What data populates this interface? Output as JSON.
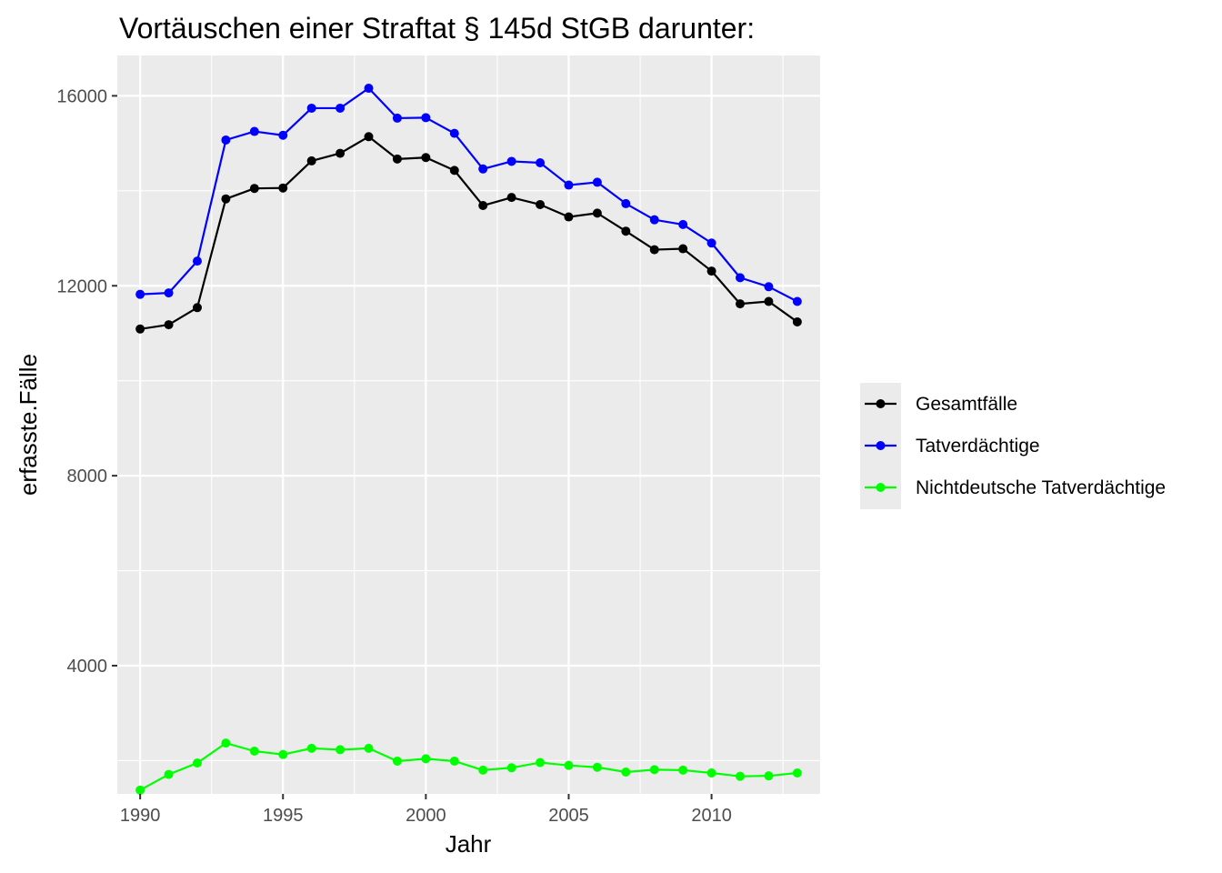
{
  "chart_data": {
    "type": "line",
    "title": "Vortäuschen einer Straftat § 145d StGB darunter:",
    "xlabel": "Jahr",
    "ylabel": "erfasste.Fälle",
    "xlim": [
      1989.2,
      2013.8
    ],
    "ylim": [
      1300,
      16850
    ],
    "x_ticks": [
      1990,
      1995,
      2000,
      2005,
      2010
    ],
    "y_ticks": [
      4000,
      8000,
      12000,
      16000
    ],
    "grid": true,
    "legend_position": "right",
    "x": [
      1990,
      1991,
      1992,
      1993,
      1994,
      1995,
      1996,
      1997,
      1998,
      1999,
      2000,
      2001,
      2002,
      2003,
      2004,
      2005,
      2006,
      2007,
      2008,
      2009,
      2010,
      2011,
      2012,
      2013
    ],
    "series": [
      {
        "name": "Gesamtfälle",
        "color": "#000000",
        "values": [
          11090,
          11180,
          11540,
          13830,
          14050,
          14060,
          14630,
          14790,
          15140,
          14670,
          14700,
          14430,
          13690,
          13860,
          13710,
          13450,
          13530,
          13150,
          12760,
          12780,
          12310,
          11620,
          11670,
          11240
        ]
      },
      {
        "name": "Tatverdächtige",
        "color": "#0000ff",
        "values": [
          11820,
          11850,
          12520,
          15070,
          15250,
          15170,
          15740,
          15740,
          16160,
          15530,
          15540,
          15210,
          14460,
          14620,
          14590,
          14120,
          14180,
          13730,
          13390,
          13290,
          12900,
          12170,
          11980,
          11670
        ]
      },
      {
        "name": "Nichtdeutsche Tatverdächtige",
        "color": "#00ff00",
        "values": [
          1380,
          1710,
          1950,
          2370,
          2200,
          2130,
          2260,
          2230,
          2260,
          1990,
          2040,
          1990,
          1800,
          1850,
          1960,
          1900,
          1860,
          1760,
          1810,
          1800,
          1740,
          1670,
          1680,
          1740
        ]
      }
    ]
  }
}
